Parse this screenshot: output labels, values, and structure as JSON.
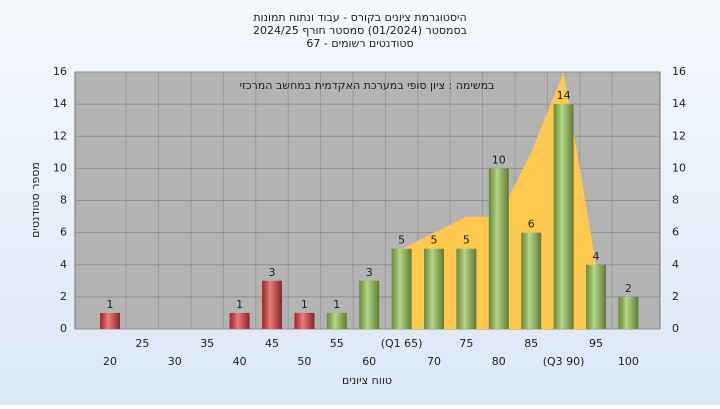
{
  "chart_data": {
    "type": "bar",
    "title": [
      "היסטוגרמת ציונים בקורס - עבוד ונתוח תמונות",
      "בסמסטר  (01/2024)  סמסטר חורף 2024/25",
      "סטודנטים רשומים - 67"
    ],
    "annotation": "במשימה : ציון סופי במערכת האקדמית במחשב המרכזי",
    "y_label": "מספר סטודנטים",
    "x_label": "טווח ציונים",
    "categories": [
      "20",
      "25",
      "30",
      "35",
      "40",
      "45",
      "50",
      "55",
      "60",
      "(Q1 65)",
      "70",
      "75",
      "80",
      "85",
      "(Q3 90)",
      "95",
      "100"
    ],
    "values": [
      1,
      0,
      0,
      0,
      1,
      3,
      1,
      1,
      3,
      5,
      5,
      5,
      10,
      6,
      14,
      4,
      2
    ],
    "colors": [
      "#d83838",
      "#d83838",
      "#d83838",
      "#d83838",
      "#d83838",
      "#d83838",
      "#d83838",
      "#8fbf4a",
      "#8fbf4a",
      "#8fbf4a",
      "#8fbf4a",
      "#8fbf4a",
      "#8fbf4a",
      "#8fbf4a",
      "#8fbf4a",
      "#8fbf4a",
      "#8fbf4a"
    ],
    "band": {
      "color": "#ffc94d",
      "values": [
        null,
        null,
        null,
        null,
        null,
        null,
        null,
        null,
        null,
        5,
        6,
        7,
        7,
        11,
        16,
        4,
        null
      ]
    },
    "ylim": [
      0,
      16
    ],
    "yticks": [
      0,
      2,
      4,
      6,
      8,
      10,
      12,
      14,
      16
    ],
    "grid": true
  }
}
